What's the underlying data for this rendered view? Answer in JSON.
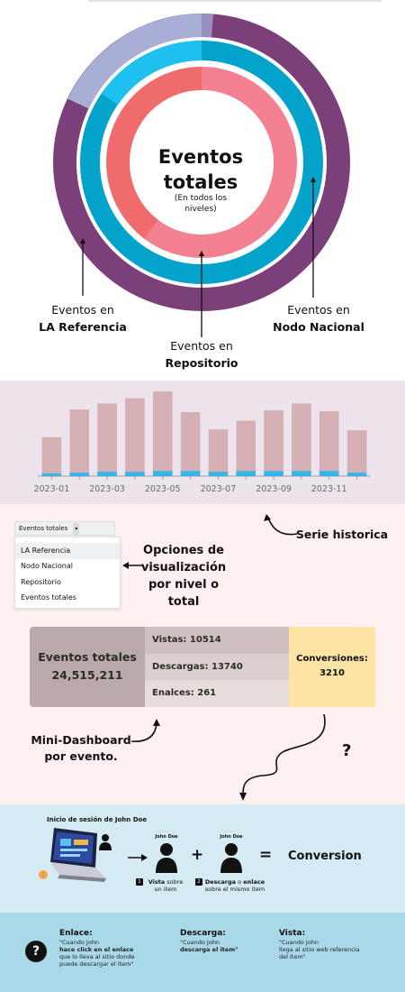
{
  "donut": {
    "center_title": "Eventos totales",
    "center_subtitle": "(En todos los niveles)",
    "label_la_referencia_prefix": "Eventos en",
    "label_la_referencia_name": "LA Referencia",
    "label_repositorio_prefix": "Eventos en",
    "label_repositorio_name": "Repositorio",
    "label_nodo_prefix": "Eventos en",
    "label_nodo_name": "Nodo Nacional",
    "colors": {
      "outer": "#7b3f7a",
      "outer_light": "#a9aed6",
      "middle": "#04a3cc",
      "middle_light": "#1ec0ef",
      "inner": "#f38191",
      "inner_dark": "#f06b6b"
    }
  },
  "chart_data": {
    "type": "bar",
    "categories": [
      "2023-01",
      "2023-02",
      "2023-03",
      "2023-04",
      "2023-05",
      "2023-06",
      "2023-07",
      "2023-08",
      "2023-09",
      "2023-10",
      "2023-11",
      "2023-12"
    ],
    "series": [
      {
        "values": [
          45,
          77,
          84,
          90,
          98,
          74,
          54,
          64,
          76,
          84,
          75,
          53
        ]
      },
      {
        "values": [
          3,
          4,
          5,
          5,
          6,
          6,
          5,
          6,
          6,
          6,
          6,
          4
        ]
      }
    ],
    "tick_labels": [
      "2023-01",
      "2023-03",
      "2023-05",
      "2023-07",
      "2023-09",
      "2023-11"
    ],
    "ylim": [
      0,
      100
    ],
    "colors": [
      "#d4afb4",
      "#35b6e6"
    ]
  },
  "notes": {
    "serie_historica": "Serie historica",
    "opciones": "Opciones de visualización por nivel o total",
    "mini_dashboard": "Mini-Dashboard por evento.",
    "question": "?"
  },
  "dropdown": {
    "selected": "Eventos totales",
    "options": [
      "LA Referencia",
      "Nodo Nacional",
      "Repositorio",
      "Eventos totales"
    ]
  },
  "dashboard": {
    "total_label": "Eventos totales",
    "total_value": "24,515,211",
    "views": "Vistas: 10514",
    "downloads": "Descargas: 13740",
    "links": "Enalces: 261",
    "conversions_label": "Conversiones:",
    "conversions_value": "3210"
  },
  "conversion": {
    "session_title": "Inicio de sesión de John Doe",
    "user1_name": "John Doe",
    "user2_name": "John Doe",
    "plus": "+",
    "equals": "=",
    "result": "Conversion",
    "caption1_bold": "Vista",
    "caption1_rest": "sobre un item",
    "caption2_bold1": "Descarga",
    "caption2_mid": "o",
    "caption2_bold2": "enlace",
    "caption2_rest": "sobre  el mismo item",
    "badge1": "1",
    "badge2": "2"
  },
  "legend": {
    "question": "?",
    "enlace_title": "Enlace",
    "enlace_line1": "\"Cuando John",
    "enlace_line2": "hace click en el enlace",
    "enlace_line3": "que lo lleva al sitio donde",
    "enlace_line4": "puede descargar el item\"",
    "descarga_title": "Descarga",
    "descarga_line1": "\"Cuando John",
    "descarga_line2": "descarga el item\"",
    "vista_title": "Vista",
    "vista_line1": " \"Cuando John",
    "vista_line2": "llega al sitio web referencia",
    "vista_line3": "del item\""
  }
}
